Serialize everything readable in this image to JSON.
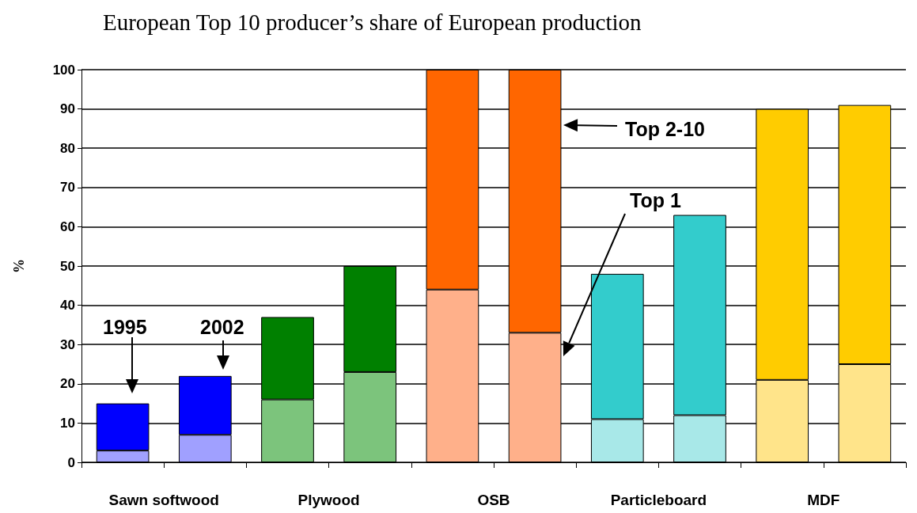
{
  "chart_data": {
    "type": "bar",
    "title": "European Top 10 producer’s share of European production",
    "ylabel": "%",
    "categories": [
      "Sawn softwood",
      null,
      "Plywood",
      null,
      "OSB",
      null,
      "Particleboard",
      null,
      "MDF",
      null
    ],
    "stacked": true,
    "series": [
      {
        "colors": [
          "#a0a0ff",
          "#a0a0ff",
          "#7cc47c",
          "#7cc47c",
          "#ffb08a",
          "#ffb08a",
          "#a8e8e8",
          "#a8e8e8",
          "#ffe48a",
          "#ffe48a"
        ],
        "values": [
          3,
          7,
          16,
          23,
          44,
          33,
          11,
          12,
          21,
          25
        ]
      },
      {
        "colors": [
          "#0000ff",
          "#0000ff",
          "#008000",
          "#008000",
          "#ff6600",
          "#ff6600",
          "#33cccc",
          "#33cccc",
          "#ffcc00",
          "#ffcc00"
        ],
        "values": [
          12,
          15,
          21,
          27,
          56,
          67,
          37,
          51,
          69,
          66
        ]
      }
    ],
    "ylim": [
      0,
      100
    ],
    "yticks": [
      0,
      10,
      20,
      30,
      40,
      50,
      60,
      70,
      80,
      90,
      100
    ],
    "grid": "y",
    "annotations": [
      "1995",
      {
        "text": "2002",
        "y": 22
      },
      "Top 2-10",
      "Top 1"
    ]
  }
}
